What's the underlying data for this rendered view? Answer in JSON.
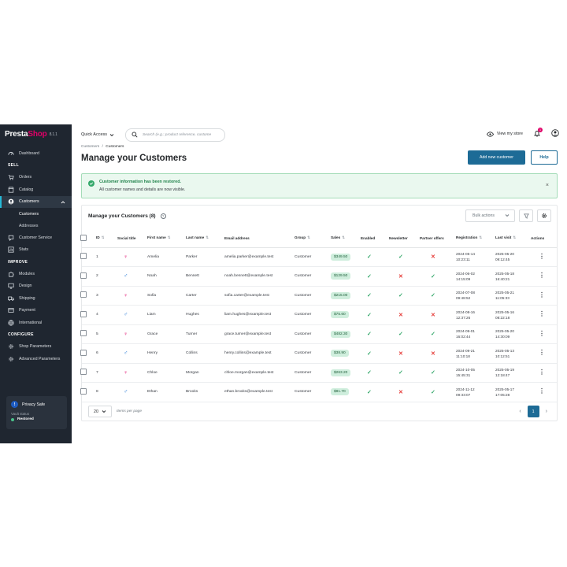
{
  "brand": {
    "presta": "Presta",
    "shop": "Shop",
    "version": "8.1.1"
  },
  "sidebar": {
    "dashboard": "Dashboard",
    "sell_section": "SELL",
    "orders": "Orders",
    "catalog": "Catalog",
    "customers": "Customers",
    "sub_customers": "Customers",
    "sub_addresses": "Addresses",
    "customer_service": "Customer Service",
    "stats": "Stats",
    "improve_section": "IMPROVE",
    "modules": "Modules",
    "design": "Design",
    "shipping": "Shipping",
    "payment": "Payment",
    "international": "International",
    "configure_section": "CONFIGURE",
    "shop_parameters": "Shop Parameters",
    "advanced_parameters": "Advanced Parameters"
  },
  "privacy": {
    "title": "Privacy Safe",
    "vault": "Vault status",
    "status": "Restored",
    "shield": "!"
  },
  "topbar": {
    "quick_access": "Quick Access",
    "search_placeholder": "Search (e.g.: product reference, custome",
    "view_store": "View my store",
    "notifications": "1"
  },
  "breadcrumb": {
    "parent": "Customers",
    "sep": "/",
    "current": "Customers"
  },
  "page": {
    "title": "Manage your Customers",
    "add_button": "Add new customer",
    "help_button": "Help"
  },
  "alert": {
    "title": "Customer information has been restored.",
    "body": "All customer names and details are now visible.",
    "close": "×"
  },
  "list": {
    "title": "Manage your Customers (8)",
    "help": "?",
    "bulk": "Bulk actions",
    "columns": {
      "id": "ID",
      "social": "Social title",
      "first": "First name",
      "last": "Last name",
      "email": "Email address",
      "group": "Group",
      "sales": "Sales",
      "enabled": "Enabled",
      "newsletter": "Newsletter",
      "partner": "Partner offers",
      "registration": "Registration",
      "last_visit": "Last visit",
      "actions": "Actions"
    },
    "rows": [
      {
        "id": "1",
        "title": "♀",
        "first": "Amelia",
        "last": "Parker",
        "email": "amelia.parker@example.test",
        "group": "Customer",
        "sales": "$349.50",
        "enabled": "✓",
        "newsletter": "✓",
        "partner": "✕",
        "reg_date": "2024-05-14",
        "reg_time": "10:23:11",
        "visit_date": "2025-05-20",
        "visit_time": "09:12:45"
      },
      {
        "id": "2",
        "title": "♂",
        "first": "Noah",
        "last": "Bennett",
        "email": "noah.bennett@example.test",
        "group": "Customer",
        "sales": "$129.50",
        "enabled": "✓",
        "newsletter": "✕",
        "partner": "✓",
        "reg_date": "2024-06-02",
        "reg_time": "14:15:09",
        "visit_date": "2025-05-18",
        "visit_time": "16:40:21"
      },
      {
        "id": "3",
        "title": "♀",
        "first": "Sofia",
        "last": "Carter",
        "email": "sofia.carter@example.test",
        "group": "Customer",
        "sales": "$215.00",
        "enabled": "✓",
        "newsletter": "✓",
        "partner": "✓",
        "reg_date": "2024-07-08",
        "reg_time": "09:48:52",
        "visit_date": "2025-05-21",
        "visit_time": "11:05:33"
      },
      {
        "id": "4",
        "title": "♂",
        "first": "Liam",
        "last": "Hughes",
        "email": "liam.hughes@example.test",
        "group": "Customer",
        "sales": "$75.60",
        "enabled": "✓",
        "newsletter": "✕",
        "partner": "✕",
        "reg_date": "2024-08-16",
        "reg_time": "12:37:26",
        "visit_date": "2025-05-16",
        "visit_time": "08:22:18"
      },
      {
        "id": "5",
        "title": "♀",
        "first": "Grace",
        "last": "Turner",
        "email": "grace.turner@example.test",
        "group": "Customer",
        "sales": "$482.30",
        "enabled": "✓",
        "newsletter": "✓",
        "partner": "✓",
        "reg_date": "2024-09-01",
        "reg_time": "16:02:44",
        "visit_date": "2025-05-20",
        "visit_time": "14:30:09"
      },
      {
        "id": "6",
        "title": "♂",
        "first": "Henry",
        "last": "Collins",
        "email": "henry.collins@example.test",
        "group": "Customer",
        "sales": "$38.90",
        "enabled": "✓",
        "newsletter": "✕",
        "partner": "✕",
        "reg_date": "2024-09-21",
        "reg_time": "11:10:18",
        "visit_date": "2025-05-13",
        "visit_time": "10:12:51"
      },
      {
        "id": "7",
        "title": "♀",
        "first": "Chloe",
        "last": "Morgan",
        "email": "chloe.morgan@example.test",
        "group": "Customer",
        "sales": "$263.20",
        "enabled": "✓",
        "newsletter": "✓",
        "partner": "✓",
        "reg_date": "2024-10-05",
        "reg_time": "15:45:31",
        "visit_date": "2025-05-19",
        "visit_time": "12:18:47"
      },
      {
        "id": "8",
        "title": "♂",
        "first": "Ethan",
        "last": "Brooks",
        "email": "ethan.brooks@example.test",
        "group": "Customer",
        "sales": "$81.70",
        "enabled": "✓",
        "newsletter": "✕",
        "partner": "✓",
        "reg_date": "2024-11-12",
        "reg_time": "09:33:07",
        "visit_date": "2025-05-17",
        "visit_time": "17:05:28"
      }
    ],
    "per_page": "20",
    "per_page_label": "Items per page",
    "page": "1",
    "prev": "‹",
    "next": "›"
  },
  "colors": {
    "sidebar": "#1f2630",
    "accent": "#1d6b96",
    "female": "#df0067",
    "male": "#2b7bd6"
  }
}
